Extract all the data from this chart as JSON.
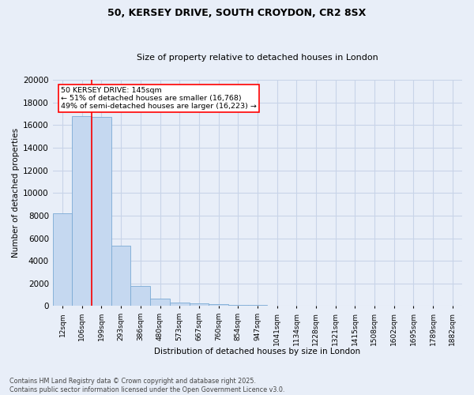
{
  "title_line1": "50, KERSEY DRIVE, SOUTH CROYDON, CR2 8SX",
  "title_line2": "Size of property relative to detached houses in London",
  "xlabel": "Distribution of detached houses by size in London",
  "ylabel": "Number of detached properties",
  "bar_labels": [
    "12sqm",
    "106sqm",
    "199sqm",
    "293sqm",
    "386sqm",
    "480sqm",
    "573sqm",
    "667sqm",
    "760sqm",
    "854sqm",
    "947sqm",
    "1041sqm",
    "1134sqm",
    "1228sqm",
    "1321sqm",
    "1415sqm",
    "1508sqm",
    "1602sqm",
    "1695sqm",
    "1789sqm",
    "1882sqm"
  ],
  "bar_values": [
    8200,
    16768,
    16700,
    5350,
    1800,
    650,
    330,
    230,
    170,
    100,
    80,
    50,
    40,
    30,
    20,
    15,
    10,
    10,
    8,
    5,
    5
  ],
  "bar_color": "#c5d8f0",
  "bar_edge_color": "#7baad4",
  "annotation_text": "50 KERSEY DRIVE: 145sqm\n← 51% of detached houses are smaller (16,768)\n49% of semi-detached houses are larger (16,223) →",
  "annotation_box_color": "white",
  "annotation_box_edge_color": "red",
  "vline_x_index": 1.5,
  "vline_color": "red",
  "ylim": [
    0,
    20000
  ],
  "yticks": [
    0,
    2000,
    4000,
    6000,
    8000,
    10000,
    12000,
    14000,
    16000,
    18000,
    20000
  ],
  "footer_line1": "Contains HM Land Registry data © Crown copyright and database right 2025.",
  "footer_line2": "Contains public sector information licensed under the Open Government Licence v3.0.",
  "bg_color": "#e8eef8",
  "plot_bg_color": "#e8eef8",
  "grid_color": "#c8d4e8",
  "title_fontsize": 9,
  "subtitle_fontsize": 8
}
